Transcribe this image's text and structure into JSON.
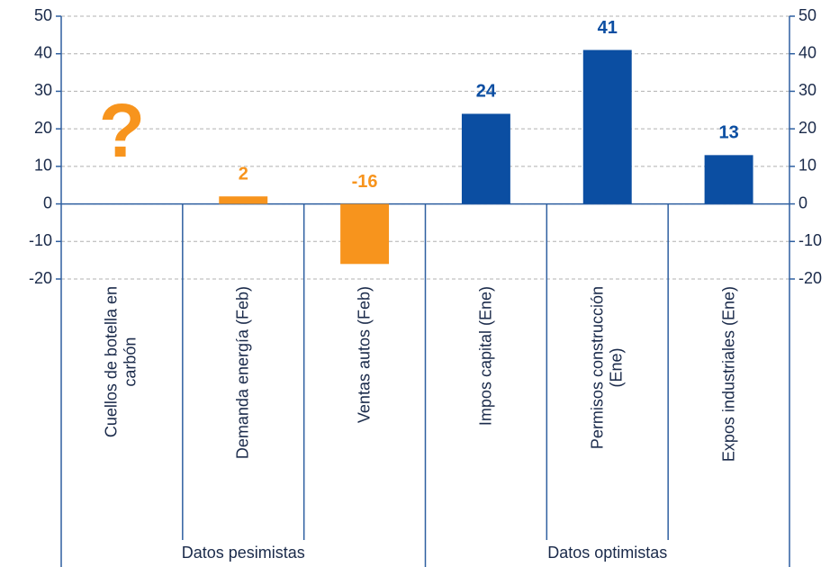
{
  "chart_data": {
    "type": "bar",
    "categories": [
      "Cuellos de botella en\ncarbón",
      "Demanda energía (Feb)",
      "Ventas autos (Feb)",
      "Impos capital (Ene)",
      "Permisos construcción\n(Ene)",
      "Expos industriales (Ene)"
    ],
    "values": [
      null,
      2,
      -16,
      24,
      41,
      13
    ],
    "colors": [
      "#f7941d",
      "#f7941d",
      "#f7941d",
      "#0b4ea2",
      "#0b4ea2",
      "#0b4ea2"
    ],
    "annotation": "?",
    "groups": [
      "Datos pesimistas",
      "Datos optimistas"
    ],
    "ylim": [
      -20,
      50
    ],
    "yticks": [
      -20,
      -10,
      0,
      10,
      20,
      30,
      40,
      50
    ],
    "grid": true
  }
}
